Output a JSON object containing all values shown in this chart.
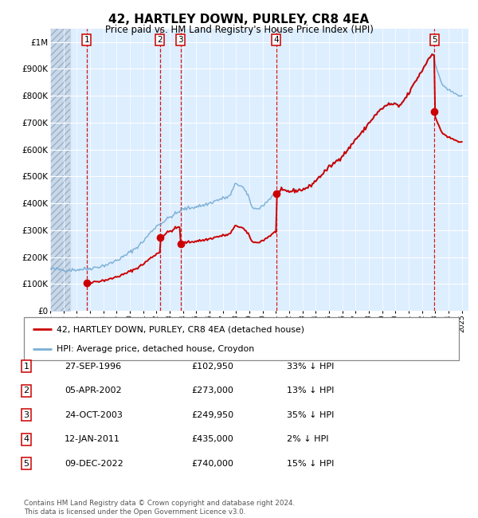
{
  "title": "42, HARTLEY DOWN, PURLEY, CR8 4EA",
  "subtitle": "Price paid vs. HM Land Registry's House Price Index (HPI)",
  "legend_property": "42, HARTLEY DOWN, PURLEY, CR8 4EA (detached house)",
  "legend_hpi": "HPI: Average price, detached house, Croydon",
  "footer": "Contains HM Land Registry data © Crown copyright and database right 2024.\nThis data is licensed under the Open Government Licence v3.0.",
  "transactions": [
    {
      "num": 1,
      "date": "27-SEP-1996",
      "price": 102950,
      "pct": "33% ↓ HPI",
      "year": 1996.74
    },
    {
      "num": 2,
      "date": "05-APR-2002",
      "price": 273000,
      "pct": "13% ↓ HPI",
      "year": 2002.26
    },
    {
      "num": 3,
      "date": "24-OCT-2003",
      "price": 249950,
      "pct": "35% ↓ HPI",
      "year": 2003.81
    },
    {
      "num": 4,
      "date": "12-JAN-2011",
      "price": 435000,
      "pct": "2% ↓ HPI",
      "year": 2011.03
    },
    {
      "num": 5,
      "date": "09-DEC-2022",
      "price": 740000,
      "pct": "15% ↓ HPI",
      "year": 2022.94
    }
  ],
  "xlim": [
    1994.0,
    2025.5
  ],
  "ylim": [
    0,
    1050000
  ],
  "yticks": [
    0,
    100000,
    200000,
    300000,
    400000,
    500000,
    600000,
    700000,
    800000,
    900000,
    1000000
  ],
  "ytick_labels": [
    "£0",
    "£100K",
    "£200K",
    "£300K",
    "£400K",
    "£500K",
    "£600K",
    "£700K",
    "£800K",
    "£900K",
    "£1M"
  ],
  "xticks": [
    1994,
    1995,
    1996,
    1997,
    1998,
    1999,
    2000,
    2001,
    2002,
    2003,
    2004,
    2005,
    2006,
    2007,
    2008,
    2009,
    2010,
    2011,
    2012,
    2013,
    2014,
    2015,
    2016,
    2017,
    2018,
    2019,
    2020,
    2021,
    2022,
    2023,
    2024,
    2025
  ],
  "property_color": "#cc0000",
  "hpi_color": "#7bafd4",
  "vline_color": "#cc0000",
  "marker_color": "#cc0000",
  "bg_color": "#ddeeff",
  "grid_color": "#ffffff",
  "hatch_color": "#c8d8e8"
}
